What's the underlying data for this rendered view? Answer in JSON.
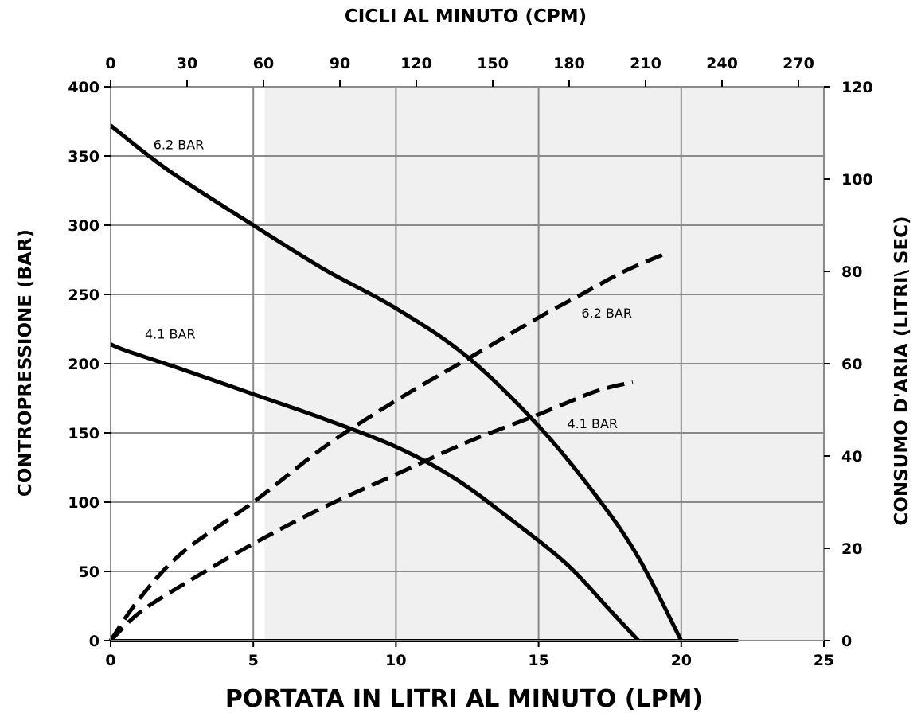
{
  "chart_data": {
    "type": "line",
    "top_axis_title": "CICLI AL MINUTO (CPM)",
    "bottom_axis_title": "PORTATA IN LITRI AL MINUTO (LPM)",
    "left_axis_title": "CONTROPRESSIONE  (BAR)",
    "right_axis_title": "CONSUMO D'ARIA (LITRI\\ SEC)",
    "x_range": [
      0,
      25
    ],
    "x_ticks": [
      "0",
      "5",
      "10",
      "15",
      "20",
      "25"
    ],
    "x_tick_values": [
      0,
      5,
      10,
      15,
      20,
      25
    ],
    "top_range": [
      0,
      280
    ],
    "top_ticks": [
      "0",
      "30",
      "60",
      "90",
      "120",
      "150",
      "180",
      "210",
      "240",
      "270"
    ],
    "top_tick_values": [
      0,
      30,
      60,
      90,
      120,
      150,
      180,
      210,
      240,
      270
    ],
    "left_range": [
      0,
      400
    ],
    "left_ticks": [
      "0",
      "50",
      "100",
      "150",
      "200",
      "250",
      "300",
      "350",
      "400"
    ],
    "left_tick_values": [
      0,
      50,
      100,
      150,
      200,
      250,
      300,
      350,
      400
    ],
    "right_range": [
      0,
      120
    ],
    "right_ticks": [
      "0",
      "20",
      "40",
      "60",
      "80",
      "100",
      "120"
    ],
    "right_tick_values": [
      0,
      20,
      40,
      60,
      80,
      100,
      120
    ],
    "grid": true,
    "shaded_region_x": [
      5.4,
      25
    ],
    "colors": {
      "curve": "#000000",
      "grid": "#8a8a8a",
      "shade": "#f0f0f0"
    },
    "series": [
      {
        "name": "6.2 BAR",
        "axis": "left",
        "style": "solid",
        "x": [
          0,
          2,
          5,
          7.5,
          10,
          12.5,
          15,
          17,
          18.5,
          20
        ],
        "y": [
          372,
          340,
          300,
          268,
          240,
          205,
          155,
          105,
          60,
          0
        ]
      },
      {
        "name": "4.1 BAR",
        "axis": "left",
        "style": "solid",
        "x": [
          0,
          0.6,
          2.5,
          5,
          7.5,
          10,
          12,
          14,
          16,
          17.5,
          18.5
        ],
        "y": [
          214,
          209,
          196,
          178,
          160,
          140,
          118,
          88,
          55,
          22,
          0
        ]
      },
      {
        "name": "6.2  BAR",
        "axis": "right",
        "style": "dashed",
        "x": [
          0,
          1,
          2.5,
          5,
          7.5,
          10,
          12.5,
          15,
          16.5,
          18,
          19.5
        ],
        "y": [
          0,
          9,
          19,
          30,
          42,
          52,
          61,
          70,
          75,
          80,
          84
        ]
      },
      {
        "name": "4.1 BAR",
        "axis": "right",
        "style": "dashed",
        "x": [
          0,
          1,
          2.5,
          5,
          7.5,
          10,
          12.5,
          15,
          17,
          18.3
        ],
        "y": [
          0,
          6,
          12,
          21,
          29,
          36,
          43,
          49,
          54,
          56
        ]
      }
    ],
    "curve_labels": [
      {
        "text": "6.2 BAR",
        "x": 1.5,
        "y": 355,
        "axis": "left"
      },
      {
        "text": "4.1 BAR",
        "x": 1.2,
        "y": 218,
        "axis": "left"
      },
      {
        "text": "6.2  BAR",
        "x": 16.5,
        "y": 70,
        "axis": "right"
      },
      {
        "text": "4.1 BAR",
        "x": 16.0,
        "y": 46,
        "axis": "right"
      }
    ]
  }
}
